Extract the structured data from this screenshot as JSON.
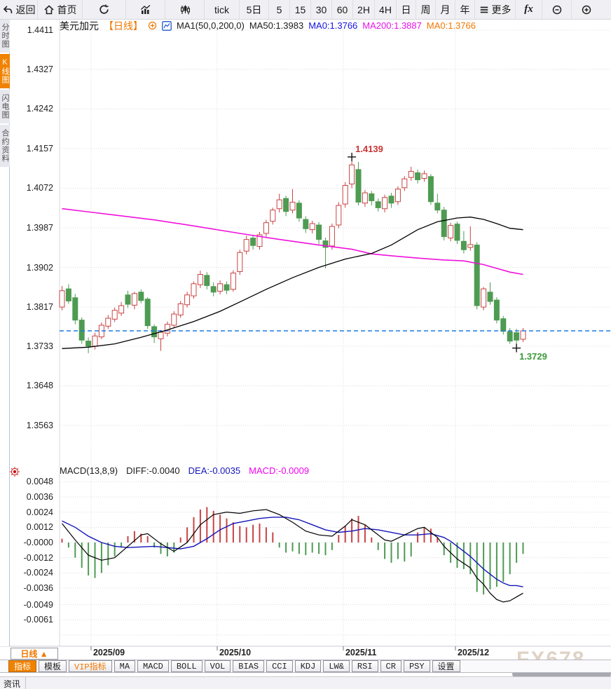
{
  "toolbar": {
    "back": "返回",
    "home": "首页",
    "tick": "tick",
    "five_day": "5日",
    "i5": "5",
    "i15": "15",
    "i30": "30",
    "i60": "60",
    "h2": "2H",
    "h4": "4H",
    "day": "日",
    "week": "周",
    "month": "月",
    "year": "年",
    "more": "更多",
    "fx": "fx"
  },
  "sidebar": {
    "tabs": [
      {
        "label": "分时图"
      },
      {
        "label": "K线图"
      },
      {
        "label": "闪电图"
      },
      {
        "label": "合约资料"
      }
    ]
  },
  "symbol_header": {
    "symbol": "美元加元",
    "period": "【日线】",
    "ma_params": "MA1(50,0,200,0)",
    "ma50": "MA50:1.3983",
    "ma0_blue": "MA0:1.3766",
    "ma200": "MA200:1.3887",
    "ma0_orange": "MA0:1.3766"
  },
  "macd_header": {
    "title": "MACD(13,8,9)",
    "diff": "DIFF:-0.0040",
    "dea": "DEA:-0.0035",
    "macd": "MACD:-0.0009"
  },
  "bottom": {
    "period_button": "日线 ▲",
    "tabs": [
      {
        "label": "指标"
      },
      {
        "label": "模板"
      },
      {
        "label": "VIP指标"
      },
      {
        "label": "MA"
      },
      {
        "label": "MACD"
      },
      {
        "label": "BOLL"
      },
      {
        "label": "VOL"
      },
      {
        "label": "BIAS"
      },
      {
        "label": "CCI"
      },
      {
        "label": "KDJ"
      },
      {
        "label": "LW&"
      },
      {
        "label": "RSI"
      },
      {
        "label": "CR"
      },
      {
        "label": "PSY"
      },
      {
        "label": "设置"
      }
    ],
    "news_tab": "资讯",
    "watermark": "FX678"
  },
  "colors": {
    "up": "#c94343",
    "down": "#4e9b52",
    "ma50": "#000000",
    "ma200": "#f011dc",
    "diff": "#000000",
    "dea": "#1414b8",
    "price_line": "#1d7ae0",
    "high_label": "#cc3333",
    "low_label": "#3a9a3a",
    "accent": "#f07800"
  },
  "chart_data": {
    "type": "candlestick",
    "symbol": "美元加元 (USD/CAD)",
    "period": "日线",
    "y_max": 1.4411,
    "y_min": 1.3563,
    "y_ticks": [
      "1.4411",
      "1.4327",
      "1.4242",
      "1.4157",
      "1.4072",
      "1.3987",
      "1.3902",
      "1.3817",
      "1.3733",
      "1.3648",
      "1.3563"
    ],
    "x_ticks": [
      {
        "label": "2025/09",
        "i": 4.41
      },
      {
        "label": "2025/10",
        "i": 23.56
      },
      {
        "label": "2025/11",
        "i": 42.71
      },
      {
        "label": "2025/12",
        "i": 59.73
      }
    ],
    "current_price": 1.3766,
    "annotations": {
      "high": {
        "i": 44,
        "price": 1.4139,
        "label": "1.4139"
      },
      "low": {
        "i": 69,
        "price": 1.3729,
        "label": "1.3729"
      }
    },
    "candles": [
      [
        1.3817,
        1.3862,
        1.381,
        1.3852
      ],
      [
        1.3856,
        1.3866,
        1.3824,
        1.383
      ],
      [
        1.3837,
        1.3845,
        1.378,
        1.3789
      ],
      [
        1.3789,
        1.3795,
        1.3738,
        1.3746
      ],
      [
        1.3744,
        1.3752,
        1.3718,
        1.3733
      ],
      [
        1.3733,
        1.3762,
        1.3726,
        1.3755
      ],
      [
        1.3753,
        1.3784,
        1.3748,
        1.3778
      ],
      [
        1.3776,
        1.38,
        1.377,
        1.3793
      ],
      [
        1.3791,
        1.3816,
        1.3785,
        1.381
      ],
      [
        1.3804,
        1.3828,
        1.3798,
        1.382
      ],
      [
        1.3843,
        1.3852,
        1.3815,
        1.3823
      ],
      [
        1.3821,
        1.385,
        1.3812,
        1.3846
      ],
      [
        1.3849,
        1.3855,
        1.3825,
        1.3831
      ],
      [
        1.3834,
        1.3838,
        1.377,
        1.3777
      ],
      [
        1.3775,
        1.378,
        1.374,
        1.3753
      ],
      [
        1.3749,
        1.3768,
        1.3723,
        1.3763
      ],
      [
        1.3761,
        1.3786,
        1.3754,
        1.378
      ],
      [
        1.3778,
        1.3808,
        1.3772,
        1.3802
      ],
      [
        1.38,
        1.383,
        1.3794,
        1.3824
      ],
      [
        1.3822,
        1.385,
        1.3816,
        1.3843
      ],
      [
        1.3841,
        1.3872,
        1.3835,
        1.3867
      ],
      [
        1.3865,
        1.3895,
        1.3858,
        1.3887
      ],
      [
        1.3885,
        1.3892,
        1.3855,
        1.3863
      ],
      [
        1.3861,
        1.387,
        1.384,
        1.3849
      ],
      [
        1.3851,
        1.3874,
        1.3844,
        1.3867
      ],
      [
        1.3865,
        1.3872,
        1.3845,
        1.3853
      ],
      [
        1.3855,
        1.3896,
        1.385,
        1.389
      ],
      [
        1.3893,
        1.394,
        1.3886,
        1.3934
      ],
      [
        1.3937,
        1.397,
        1.393,
        1.3962
      ],
      [
        1.3965,
        1.3972,
        1.394,
        1.3949
      ],
      [
        1.3947,
        1.3978,
        1.394,
        1.3972
      ],
      [
        1.3975,
        1.4004,
        1.3968,
        1.3998
      ],
      [
        1.4001,
        1.403,
        1.3994,
        1.4025
      ],
      [
        1.4028,
        1.406,
        1.402,
        1.4047
      ],
      [
        1.405,
        1.4056,
        1.4012,
        1.4022
      ],
      [
        1.4025,
        1.407,
        1.4018,
        1.4042
      ],
      [
        1.404,
        1.4046,
        1.4,
        1.4008
      ],
      [
        1.4005,
        1.4012,
        1.3976,
        1.3985
      ],
      [
        1.3983,
        1.4002,
        1.3975,
        1.3996
      ],
      [
        1.3993,
        1.3999,
        1.3952,
        1.3962
      ],
      [
        1.3959,
        1.3966,
        1.39,
        1.3945
      ],
      [
        1.3948,
        1.3996,
        1.394,
        1.399
      ],
      [
        1.3993,
        1.4042,
        1.3986,
        1.4035
      ],
      [
        1.4038,
        1.4085,
        1.403,
        1.4078
      ],
      [
        1.4081,
        1.4139,
        1.4072,
        1.4122
      ],
      [
        1.4112,
        1.4128,
        1.4035,
        1.4042
      ],
      [
        1.404,
        1.4068,
        1.4032,
        1.4062
      ],
      [
        1.406,
        1.4066,
        1.4035,
        1.4045
      ],
      [
        1.4043,
        1.405,
        1.4022,
        1.403
      ],
      [
        1.4028,
        1.4058,
        1.402,
        1.4052
      ],
      [
        1.4055,
        1.4062,
        1.403,
        1.404
      ],
      [
        1.4043,
        1.4076,
        1.4036,
        1.407
      ],
      [
        1.4073,
        1.4098,
        1.4066,
        1.4092
      ],
      [
        1.4095,
        1.4118,
        1.4088,
        1.4108
      ],
      [
        1.4105,
        1.4112,
        1.4082,
        1.409
      ],
      [
        1.4093,
        1.411,
        1.4086,
        1.4103
      ],
      [
        1.4097,
        1.4102,
        1.4036,
        1.4043
      ],
      [
        1.404,
        1.406,
        1.4018,
        1.4025
      ],
      [
        1.4025,
        1.4032,
        1.396,
        1.3968
      ],
      [
        1.3965,
        1.3998,
        1.3958,
        1.3992
      ],
      [
        1.3995,
        1.4,
        1.3952,
        1.396
      ],
      [
        1.3958,
        1.398,
        1.3932,
        1.394
      ],
      [
        1.3945,
        1.399,
        1.3938,
        1.3951
      ],
      [
        1.395,
        1.3956,
        1.3812,
        1.382
      ],
      [
        1.3817,
        1.386,
        1.381,
        1.3856
      ],
      [
        1.3849,
        1.387,
        1.3822,
        1.3829
      ],
      [
        1.3832,
        1.3838,
        1.3782,
        1.3789
      ],
      [
        1.3792,
        1.3798,
        1.3758,
        1.3765
      ],
      [
        1.3764,
        1.3772,
        1.3738,
        1.3744
      ],
      [
        1.3762,
        1.377,
        1.3729,
        1.3746
      ],
      [
        1.3748,
        1.3772,
        1.3742,
        1.3766
      ]
    ],
    "ma50_points": [
      [
        0,
        1.3728
      ],
      [
        4,
        1.3731
      ],
      [
        8,
        1.3738
      ],
      [
        12,
        1.3752
      ],
      [
        16,
        1.3768
      ],
      [
        20,
        1.3786
      ],
      [
        24,
        1.3808
      ],
      [
        27,
        1.3828
      ],
      [
        31,
        1.3855
      ],
      [
        35,
        1.388
      ],
      [
        39,
        1.3902
      ],
      [
        43,
        1.392
      ],
      [
        47,
        1.3932
      ],
      [
        50,
        1.395
      ],
      [
        54,
        1.3983
      ],
      [
        57,
        1.4
      ],
      [
        60,
        1.4008
      ],
      [
        62,
        1.401
      ],
      [
        64,
        1.4005
      ],
      [
        66,
        1.3996
      ],
      [
        68,
        1.3986
      ],
      [
        70,
        1.3983
      ]
    ],
    "ma200_points": [
      [
        0,
        1.4028
      ],
      [
        7,
        1.4016
      ],
      [
        14,
        1.4004
      ],
      [
        20,
        1.3991
      ],
      [
        27,
        1.3975
      ],
      [
        33,
        1.3962
      ],
      [
        39,
        1.395
      ],
      [
        44,
        1.3941
      ],
      [
        47,
        1.3931
      ],
      [
        50,
        1.3927
      ],
      [
        54,
        1.3922
      ],
      [
        58,
        1.3918
      ],
      [
        61,
        1.3916
      ],
      [
        64,
        1.3908
      ],
      [
        66,
        1.39
      ],
      [
        68,
        1.3892
      ],
      [
        70,
        1.3887
      ]
    ],
    "macd": {
      "y_ticks": [
        "0.0048",
        "0.0036",
        "0.0024",
        "0.0012",
        "-0.0000",
        "-0.0012",
        "-0.0024",
        "-0.0036",
        "-0.0049",
        "-0.0061"
      ],
      "histogram": [
        0.0003,
        -0.0004,
        -0.0012,
        -0.002,
        -0.0026,
        -0.0028,
        -0.0024,
        -0.0018,
        -0.0011,
        -0.0004,
        0.0005,
        0.0009,
        0.0007,
        0.0005,
        -0.0004,
        -0.0009,
        -0.0011,
        -0.0008,
        0.0004,
        0.0012,
        0.002,
        0.0026,
        0.0028,
        0.0025,
        0.0022,
        0.0019,
        0.0016,
        0.0013,
        0.0012,
        0.0014,
        0.0015,
        0.0012,
        0.0008,
        -0.0004,
        -0.0008,
        -0.0007,
        -0.0009,
        -0.001,
        -0.0008,
        -0.0009,
        -0.001,
        -0.0006,
        0.0006,
        0.0013,
        0.0019,
        0.0021,
        0.0014,
        0.0004,
        -0.0006,
        -0.0013,
        -0.0016,
        -0.0013,
        -0.0015,
        -0.0011,
        0.0008,
        0.0012,
        0.0011,
        0.0004,
        -0.001,
        -0.0016,
        -0.002,
        -0.0021,
        -0.0025,
        -0.0039,
        -0.0041,
        -0.0037,
        -0.0035,
        -0.0031,
        -0.0025,
        -0.0016,
        -0.0009
      ],
      "diff_points": [
        [
          0,
          0.0015
        ],
        [
          2,
          0.0002
        ],
        [
          4,
          -0.001
        ],
        [
          6,
          -0.0014
        ],
        [
          8,
          -0.0012
        ],
        [
          10,
          -0.0003
        ],
        [
          12,
          0.0006
        ],
        [
          13,
          0.0007
        ],
        [
          15,
          -0.0001
        ],
        [
          17,
          -0.0007
        ],
        [
          19,
          0.0
        ],
        [
          21,
          0.0014
        ],
        [
          23,
          0.0022
        ],
        [
          25,
          0.0024
        ],
        [
          27,
          0.0023
        ],
        [
          29,
          0.0025
        ],
        [
          31,
          0.0026
        ],
        [
          33,
          0.0022
        ],
        [
          35,
          0.0016
        ],
        [
          37,
          0.0009
        ],
        [
          39,
          0.0006
        ],
        [
          41,
          0.0005
        ],
        [
          43,
          0.0013
        ],
        [
          44,
          0.0018
        ],
        [
          46,
          0.0014
        ],
        [
          47,
          0.001
        ],
        [
          49,
          0.0002
        ],
        [
          50,
          0.0001
        ],
        [
          52,
          0.0006
        ],
        [
          54,
          0.0011
        ],
        [
          55,
          0.0012
        ],
        [
          57,
          0.0004
        ],
        [
          58,
          -0.0003
        ],
        [
          60,
          -0.0013
        ],
        [
          62,
          -0.002
        ],
        [
          63,
          -0.0028
        ],
        [
          64,
          -0.0033
        ],
        [
          65,
          -0.004
        ],
        [
          66,
          -0.0045
        ],
        [
          67,
          -0.0047
        ],
        [
          68,
          -0.0046
        ],
        [
          69,
          -0.0043
        ],
        [
          70,
          -0.004
        ]
      ],
      "dea_points": [
        [
          0,
          0.0017
        ],
        [
          2,
          0.0012
        ],
        [
          4,
          0.0005
        ],
        [
          6,
          0.0
        ],
        [
          8,
          -0.0003
        ],
        [
          10,
          -0.0004
        ],
        [
          14,
          -0.0003
        ],
        [
          18,
          -0.0005
        ],
        [
          20,
          -0.0003
        ],
        [
          22,
          0.0003
        ],
        [
          24,
          0.001
        ],
        [
          26,
          0.0015
        ],
        [
          28,
          0.0017
        ],
        [
          30,
          0.0019
        ],
        [
          32,
          0.002
        ],
        [
          34,
          0.002
        ],
        [
          36,
          0.0018
        ],
        [
          38,
          0.0014
        ],
        [
          40,
          0.001
        ],
        [
          42,
          0.0008
        ],
        [
          44,
          0.0009
        ],
        [
          46,
          0.0011
        ],
        [
          48,
          0.001
        ],
        [
          50,
          0.0008
        ],
        [
          52,
          0.0006
        ],
        [
          54,
          0.0006
        ],
        [
          56,
          0.0007
        ],
        [
          58,
          0.0004
        ],
        [
          59,
          0.0001
        ],
        [
          60,
          -0.0003
        ],
        [
          61,
          -0.0007
        ],
        [
          62,
          -0.0011
        ],
        [
          63,
          -0.0016
        ],
        [
          64,
          -0.0021
        ],
        [
          65,
          -0.0025
        ],
        [
          66,
          -0.0029
        ],
        [
          67,
          -0.0032
        ],
        [
          68,
          -0.0034
        ],
        [
          69,
          -0.0034
        ],
        [
          70,
          -0.0035
        ]
      ]
    }
  }
}
